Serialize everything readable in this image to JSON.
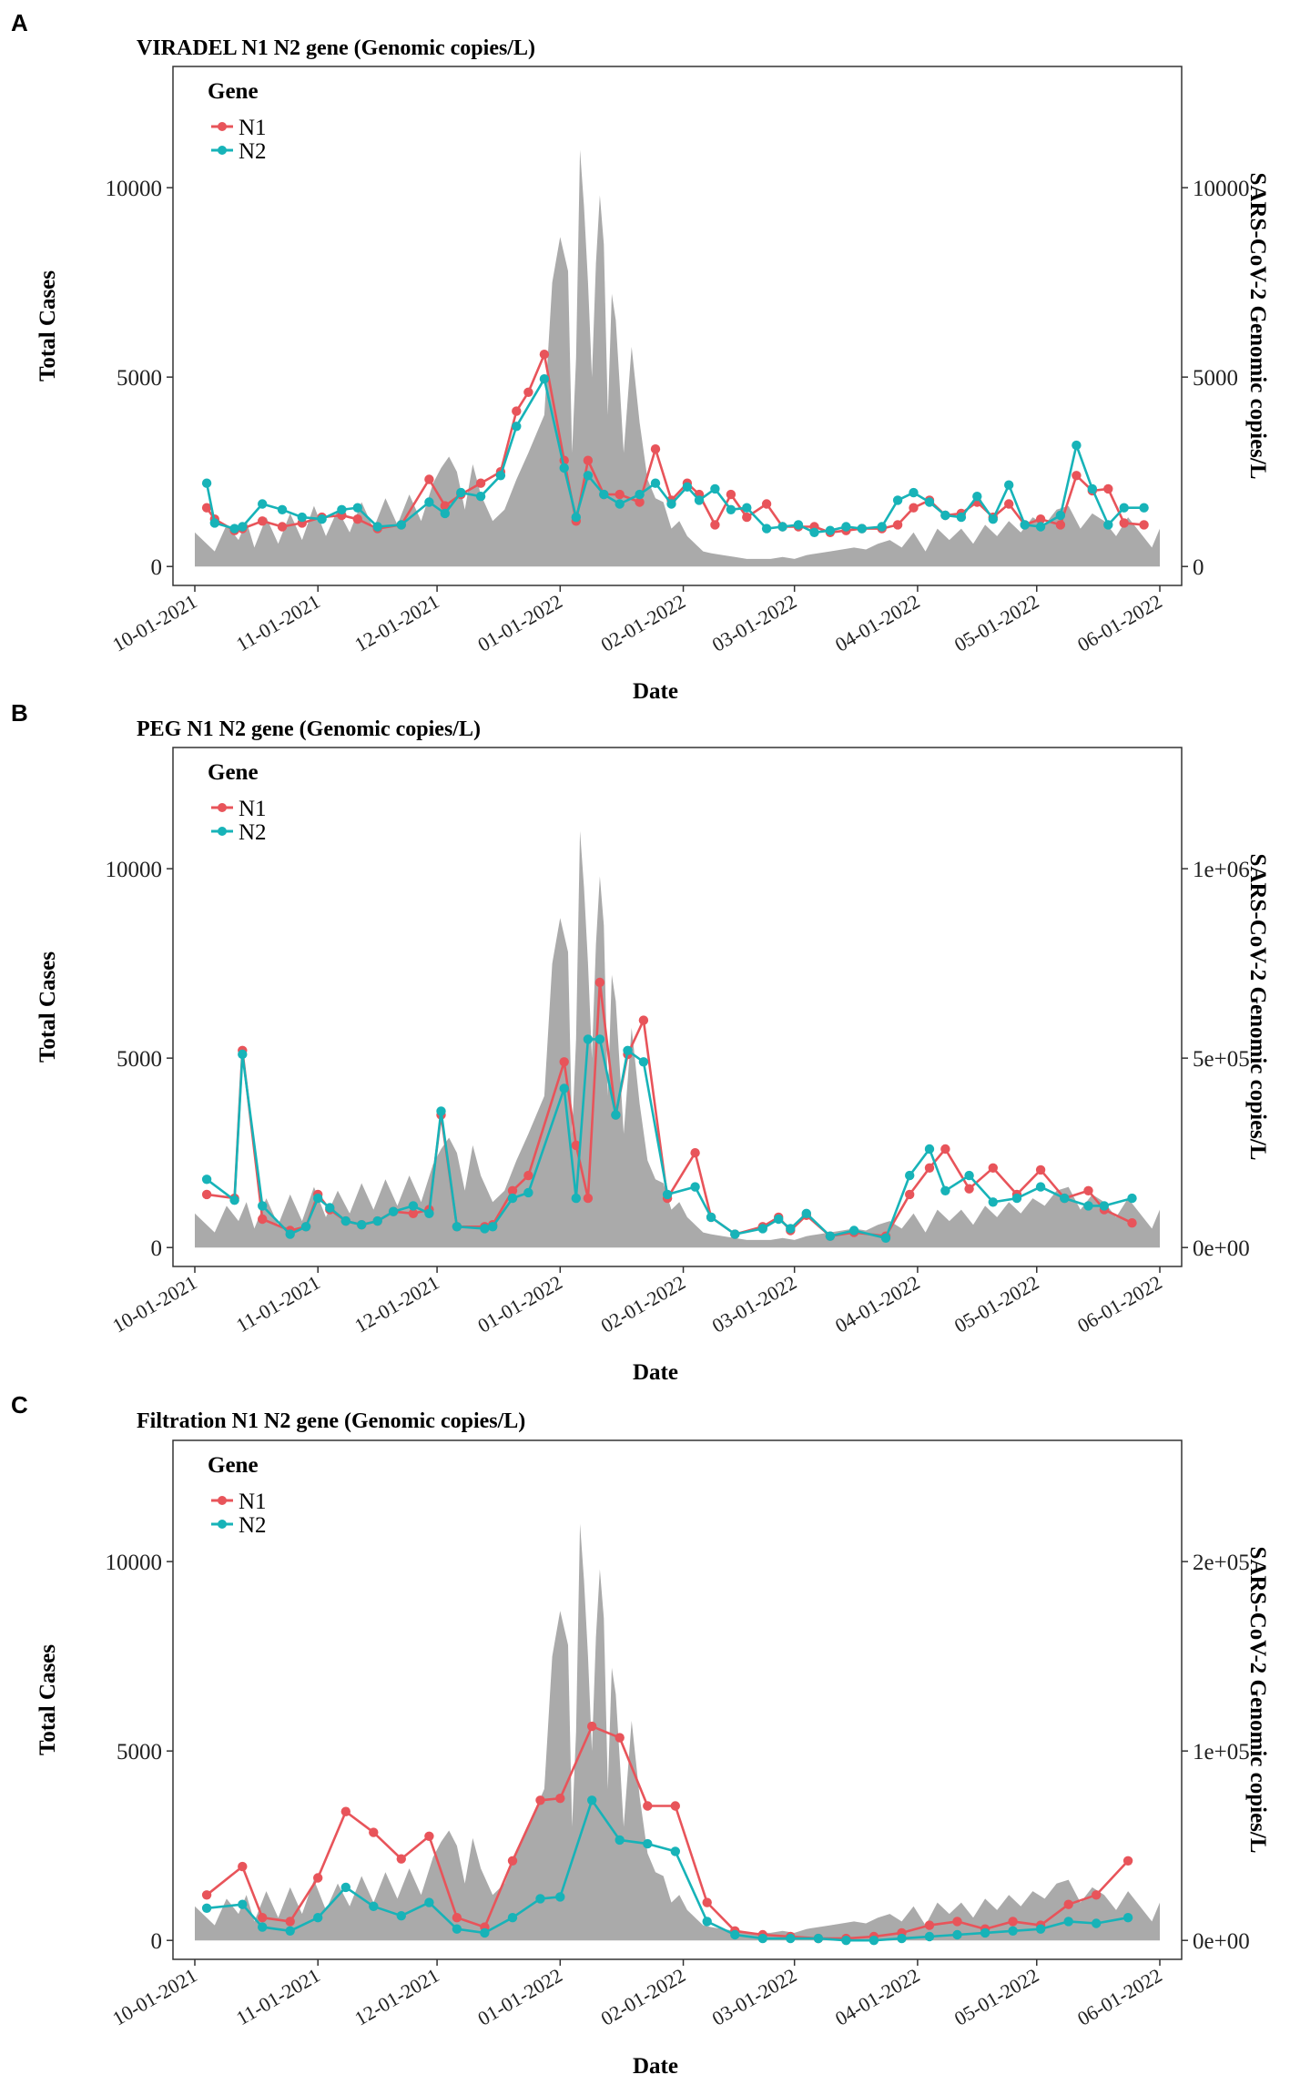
{
  "figure": {
    "panel_labels": [
      "A",
      "B",
      "C"
    ],
    "x_tick_labels": [
      "10-01-2021",
      "11-01-2021",
      "12-01-2021",
      "01-01-2022",
      "02-01-2022",
      "03-01-2022",
      "04-01-2022",
      "05-01-2022",
      "06-01-2022"
    ],
    "xlabel": "Date",
    "ylabel_left": "Total Cases",
    "ylabel_right": "SARS-CoV-2 Genomic copies/L",
    "legend_title": "Gene",
    "legend_items": [
      "N1",
      "N2"
    ],
    "colors": {
      "N1": "#E8545A",
      "N2": "#17B3B8",
      "area": "#AAAAAA",
      "border": "#333333"
    }
  },
  "chart_data": [
    {
      "type": "line",
      "panel": "A",
      "title": "VIRADEL N1 N2 gene (Genomic copies/L)",
      "xlabel": "Date",
      "ylabel": "Total Cases",
      "ylabel_right": "SARS-CoV-2 Genomic copies/L",
      "x_range_days": [
        0,
        243
      ],
      "ylim_left": [
        -500,
        13200
      ],
      "ylim_right": [
        -500,
        13200
      ],
      "y_ticks_left": [
        0,
        5000,
        10000
      ],
      "y_ticks_right_values": [
        0,
        5000,
        10000
      ],
      "y_ticks_right_labels": [
        "0",
        "5000",
        "10000"
      ],
      "background_area": {
        "name": "Total Cases",
        "x_days": [
          0,
          5,
          8,
          11,
          13,
          15,
          18,
          21,
          24,
          27,
          30,
          33,
          36,
          39,
          42,
          45,
          48,
          51,
          54,
          57,
          60,
          62,
          64,
          66,
          68,
          70,
          72,
          75,
          78,
          81,
          84,
          86,
          88,
          90,
          92,
          94,
          95,
          96,
          97,
          98,
          99,
          100,
          101,
          102,
          103,
          104,
          105,
          106,
          107,
          108,
          110,
          112,
          114,
          116,
          118,
          120,
          122,
          124,
          126,
          128,
          130,
          133,
          136,
          139,
          142,
          145,
          148,
          151,
          154,
          157,
          160,
          163,
          166,
          169,
          172,
          175,
          178,
          181,
          184,
          187,
          190,
          193,
          196,
          199,
          202,
          205,
          208,
          211,
          214,
          217,
          220,
          223,
          226,
          229,
          232,
          235,
          238,
          241,
          243
        ],
        "values": [
          900,
          400,
          1100,
          700,
          1200,
          500,
          1300,
          600,
          1400,
          700,
          1600,
          800,
          1500,
          900,
          1700,
          1000,
          1800,
          1100,
          1900,
          1200,
          2200,
          2600,
          2900,
          2500,
          1500,
          2700,
          1900,
          1200,
          1500,
          2300,
          3000,
          3500,
          4000,
          7500,
          8700,
          7800,
          3000,
          5500,
          11000,
          9500,
          7500,
          5000,
          8000,
          9800,
          8500,
          4000,
          7200,
          6500,
          4800,
          3000,
          5800,
          3800,
          2300,
          1800,
          1700,
          1000,
          1200,
          800,
          600,
          400,
          350,
          300,
          250,
          200,
          200,
          200,
          250,
          200,
          300,
          350,
          400,
          450,
          500,
          450,
          600,
          700,
          500,
          900,
          400,
          1000,
          700,
          1000,
          600,
          1100,
          800,
          1200,
          900,
          1300,
          1100,
          1500,
          1600,
          1000,
          1400,
          1200,
          800,
          1300,
          900,
          500,
          1000
        ]
      },
      "series": [
        {
          "name": "N1",
          "x_days": [
            3,
            5,
            10,
            12,
            17,
            22,
            27,
            32,
            37,
            41,
            46,
            52,
            59,
            63,
            67,
            72,
            77,
            81,
            84,
            88,
            93,
            96,
            99,
            103,
            107,
            112,
            116,
            120,
            124,
            127,
            131,
            135,
            139,
            144,
            148,
            152,
            156,
            160,
            164,
            168,
            173,
            177,
            181,
            185,
            189,
            193,
            197,
            201,
            205,
            209,
            213,
            218,
            222,
            226,
            230,
            234,
            239
          ],
          "values": [
            1550,
            1250,
            950,
            1000,
            1200,
            1050,
            1150,
            1300,
            1350,
            1250,
            1000,
            1100,
            2300,
            1600,
            1900,
            2200,
            2500,
            4100,
            4600,
            5600,
            2800,
            1200,
            2800,
            1900,
            1900,
            1700,
            3100,
            1750,
            2200,
            1900,
            1100,
            1900,
            1300,
            1650,
            1050,
            1050,
            1050,
            900,
            950,
            1000,
            1000,
            1100,
            1550,
            1750,
            1350,
            1400,
            1700,
            1300,
            1650,
            1100,
            1250,
            1100,
            2400,
            2000,
            2050,
            1150,
            1100
          ]
        },
        {
          "name": "N2",
          "x_days": [
            3,
            5,
            10,
            12,
            17,
            22,
            27,
            32,
            37,
            41,
            46,
            52,
            59,
            63,
            67,
            72,
            77,
            81,
            88,
            93,
            96,
            99,
            103,
            107,
            112,
            116,
            120,
            124,
            127,
            131,
            135,
            139,
            144,
            148,
            152,
            156,
            160,
            164,
            168,
            173,
            177,
            181,
            185,
            189,
            193,
            197,
            201,
            205,
            209,
            213,
            218,
            222,
            226,
            230,
            234,
            239
          ],
          "values": [
            2200,
            1150,
            1000,
            1050,
            1650,
            1500,
            1300,
            1250,
            1500,
            1550,
            1050,
            1100,
            1700,
            1400,
            1950,
            1850,
            2400,
            3700,
            4950,
            2600,
            1300,
            2400,
            1900,
            1650,
            1900,
            2200,
            1650,
            2100,
            1750,
            2050,
            1500,
            1550,
            1000,
            1050,
            1100,
            900,
            950,
            1050,
            1000,
            1050,
            1750,
            1950,
            1700,
            1350,
            1300,
            1850,
            1250,
            2150,
            1100,
            1050,
            1350,
            3200,
            2050,
            1100,
            1550,
            1550
          ]
        }
      ]
    },
    {
      "type": "line",
      "panel": "B",
      "title": "PEG N1 N2 gene (Genomic copies/L)",
      "xlabel": "Date",
      "ylabel": "Total Cases",
      "ylabel_right": "SARS-CoV-2 Genomic copies/L",
      "x_range_days": [
        0,
        243
      ],
      "ylim_left": [
        -500,
        13200
      ],
      "ylim_right": [
        -50000,
        1320000
      ],
      "y_ticks_left": [
        0,
        5000,
        10000
      ],
      "y_ticks_right_values": [
        0,
        500000,
        1000000
      ],
      "y_ticks_right_labels": [
        "0e+00",
        "5e+05",
        "1e+06"
      ],
      "series": [
        {
          "name": "N1",
          "x_days": [
            3,
            10,
            12,
            17,
            24,
            28,
            31,
            34,
            38,
            42,
            46,
            50,
            55,
            59,
            62,
            66,
            73,
            75,
            80,
            84,
            93,
            96,
            99,
            102,
            106,
            109,
            113,
            119,
            126,
            130,
            136,
            143,
            147,
            150,
            154,
            160,
            166,
            174,
            180,
            185,
            189,
            195,
            201,
            207,
            213,
            219,
            225,
            229,
            236
          ],
          "values": [
            140000,
            130000,
            520000,
            75000,
            45000,
            55000,
            140000,
            100000,
            70000,
            60000,
            70000,
            95000,
            90000,
            100000,
            350000,
            55000,
            55000,
            60000,
            150000,
            190000,
            490000,
            270000,
            130000,
            700000,
            350000,
            510000,
            600000,
            130000,
            250000,
            80000,
            35000,
            55000,
            80000,
            45000,
            85000,
            30000,
            40000,
            30000,
            140000,
            210000,
            260000,
            155000,
            210000,
            140000,
            205000,
            130000,
            150000,
            100000,
            65000
          ]
        },
        {
          "name": "N2",
          "x_days": [
            3,
            10,
            12,
            17,
            24,
            28,
            31,
            34,
            38,
            42,
            46,
            50,
            55,
            59,
            62,
            66,
            73,
            75,
            80,
            84,
            93,
            96,
            99,
            102,
            106,
            109,
            113,
            119,
            126,
            130,
            136,
            143,
            147,
            150,
            154,
            160,
            166,
            174,
            180,
            185,
            189,
            195,
            201,
            207,
            213,
            219,
            225,
            229,
            236
          ],
          "values": [
            180000,
            125000,
            510000,
            110000,
            35000,
            55000,
            130000,
            105000,
            70000,
            60000,
            70000,
            95000,
            110000,
            90000,
            360000,
            55000,
            50000,
            55000,
            130000,
            145000,
            420000,
            130000,
            550000,
            550000,
            350000,
            520000,
            490000,
            140000,
            160000,
            80000,
            35000,
            50000,
            75000,
            50000,
            90000,
            30000,
            45000,
            25000,
            190000,
            260000,
            150000,
            190000,
            120000,
            130000,
            160000,
            130000,
            110000,
            110000,
            130000
          ]
        }
      ]
    },
    {
      "type": "line",
      "panel": "C",
      "title": "Filtration N1 N2 gene (Genomic copies/L)",
      "xlabel": "Date",
      "ylabel": "Total Cases",
      "ylabel_right": "SARS-CoV-2 Genomic copies/L",
      "x_range_days": [
        0,
        243
      ],
      "ylim_left": [
        -500,
        13200
      ],
      "ylim_right": [
        -10000,
        264000
      ],
      "y_ticks_left": [
        0,
        5000,
        10000
      ],
      "y_ticks_right_values": [
        0,
        100000,
        200000
      ],
      "y_ticks_right_labels": [
        "0e+00",
        "1e+05",
        "2e+05"
      ],
      "series": [
        {
          "name": "N1",
          "x_days": [
            3,
            12,
            17,
            24,
            31,
            38,
            45,
            52,
            59,
            66,
            73,
            80,
            87,
            92,
            100,
            107,
            114,
            121,
            129,
            136,
            143,
            150,
            157,
            164,
            171,
            178,
            185,
            192,
            199,
            206,
            213,
            220,
            227,
            235
          ],
          "values": [
            24000,
            39000,
            12000,
            10000,
            33000,
            68000,
            57000,
            43000,
            55000,
            12000,
            7000,
            42000,
            74000,
            75000,
            113000,
            107000,
            71000,
            71000,
            20000,
            5000,
            3000,
            2000,
            1000,
            1000,
            2000,
            4000,
            8000,
            10000,
            6000,
            10000,
            8000,
            19000,
            24000,
            42000
          ]
        },
        {
          "name": "N2",
          "x_days": [
            3,
            12,
            17,
            24,
            31,
            38,
            45,
            52,
            59,
            66,
            73,
            80,
            87,
            92,
            100,
            107,
            114,
            121,
            129,
            136,
            143,
            150,
            157,
            164,
            171,
            178,
            185,
            192,
            199,
            206,
            213,
            220,
            227,
            235
          ],
          "values": [
            17000,
            19000,
            7000,
            5000,
            12000,
            28000,
            18000,
            13000,
            20000,
            6000,
            4000,
            12000,
            22000,
            23000,
            74000,
            53000,
            51000,
            47000,
            10000,
            3000,
            1000,
            1000,
            1000,
            0,
            0,
            1000,
            2000,
            3000,
            4000,
            5000,
            6000,
            10000,
            9000,
            12000
          ]
        }
      ]
    }
  ]
}
